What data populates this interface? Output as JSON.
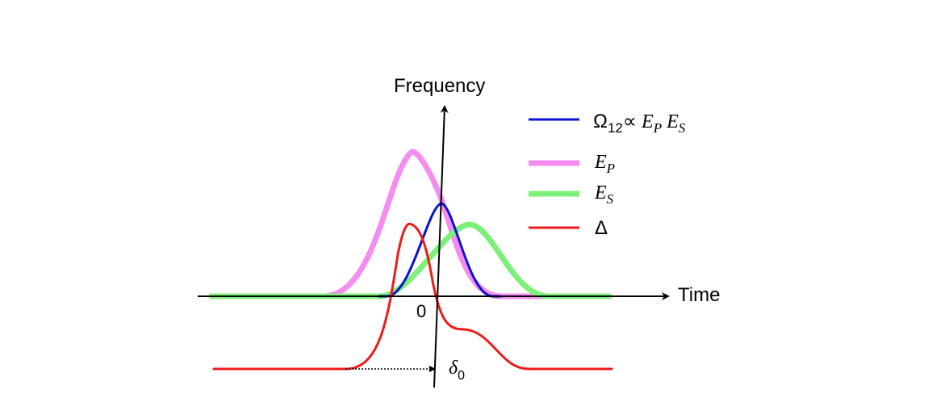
{
  "axes": {
    "x_label": "Time",
    "y_label": "Frequency",
    "origin_label": "0",
    "offset_label": "δ",
    "offset_sub": "0"
  },
  "legend": [
    {
      "key": "omega",
      "color": "#0a12d6",
      "parts": [
        {
          "t": "Ω",
          "style": "upright"
        },
        {
          "t": "12",
          "style": "sub"
        },
        {
          "t": "∝",
          "style": "upright"
        },
        {
          "t": " E",
          "style": "italic"
        },
        {
          "t": "P",
          "style": "isub"
        },
        {
          "t": " E",
          "style": "italic"
        },
        {
          "t": "S",
          "style": "isub"
        }
      ]
    },
    {
      "key": "ep",
      "color": "#f58cf0",
      "parts": [
        {
          "t": "E",
          "style": "italic"
        },
        {
          "t": "P",
          "style": "isub"
        }
      ]
    },
    {
      "key": "es",
      "color": "#7df07a",
      "parts": [
        {
          "t": "E",
          "style": "italic"
        },
        {
          "t": "S",
          "style": "isub"
        }
      ]
    },
    {
      "key": "delta",
      "color": "#ef1b1b",
      "parts": [
        {
          "t": "Δ",
          "style": "upright"
        }
      ]
    }
  ]
}
